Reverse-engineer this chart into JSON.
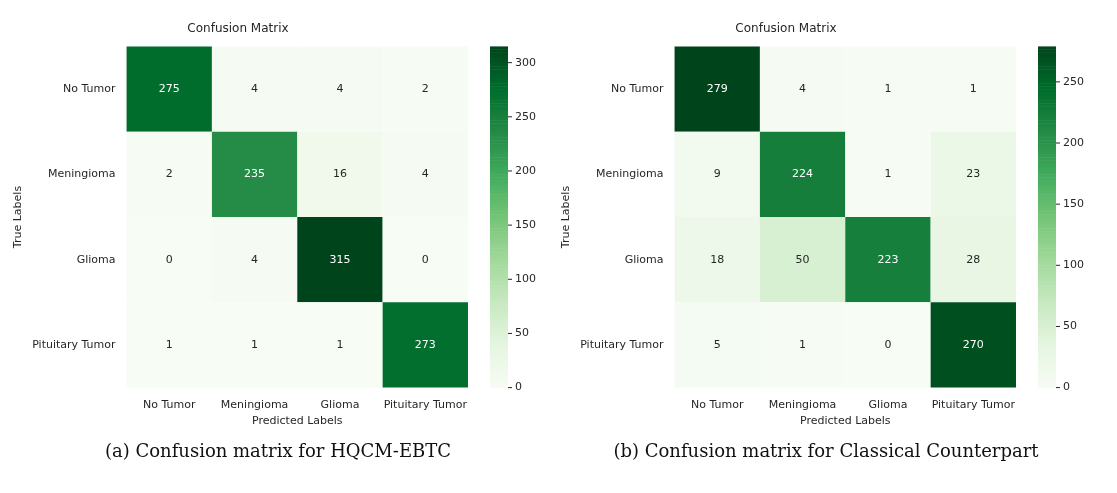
{
  "chart_data": [
    {
      "type": "heatmap",
      "title": "Confusion Matrix",
      "xlabel": "Predicted Labels",
      "ylabel": "True Labels",
      "categories": [
        "No Tumor",
        "Meningioma",
        "Glioma",
        "Pituitary Tumor"
      ],
      "y_categories": [
        "No Tumor",
        "Meningioma",
        "Glioma",
        "Pituitary Tumor"
      ],
      "cells": [
        [
          275,
          4,
          4,
          2
        ],
        [
          2,
          235,
          16,
          4
        ],
        [
          0,
          4,
          315,
          0
        ],
        [
          1,
          1,
          1,
          273
        ]
      ],
      "clim": [
        0,
        315
      ],
      "cticks": [
        0,
        50,
        100,
        150,
        200,
        250,
        300
      ],
      "data_labels": true,
      "annotations": [
        "(a) Confusion matrix for HQCM-EBTC"
      ]
    },
    {
      "type": "heatmap",
      "title": "Confusion Matrix",
      "xlabel": "Predicted Labels",
      "ylabel": "True Labels",
      "categories": [
        "No Tumor",
        "Meningioma",
        "Glioma",
        "Pituitary Tumor"
      ],
      "y_categories": [
        "No Tumor",
        "Meningioma",
        "Glioma",
        "Pituitary Tumor"
      ],
      "cells": [
        [
          279,
          4,
          1,
          1
        ],
        [
          9,
          224,
          1,
          23
        ],
        [
          18,
          50,
          223,
          28
        ],
        [
          5,
          1,
          0,
          270
        ]
      ],
      "clim": [
        0,
        279
      ],
      "cticks": [
        0,
        50,
        100,
        150,
        200,
        250
      ],
      "data_labels": true,
      "annotations": [
        "(b) Confusion matrix for Classical Counterpart"
      ]
    }
  ]
}
